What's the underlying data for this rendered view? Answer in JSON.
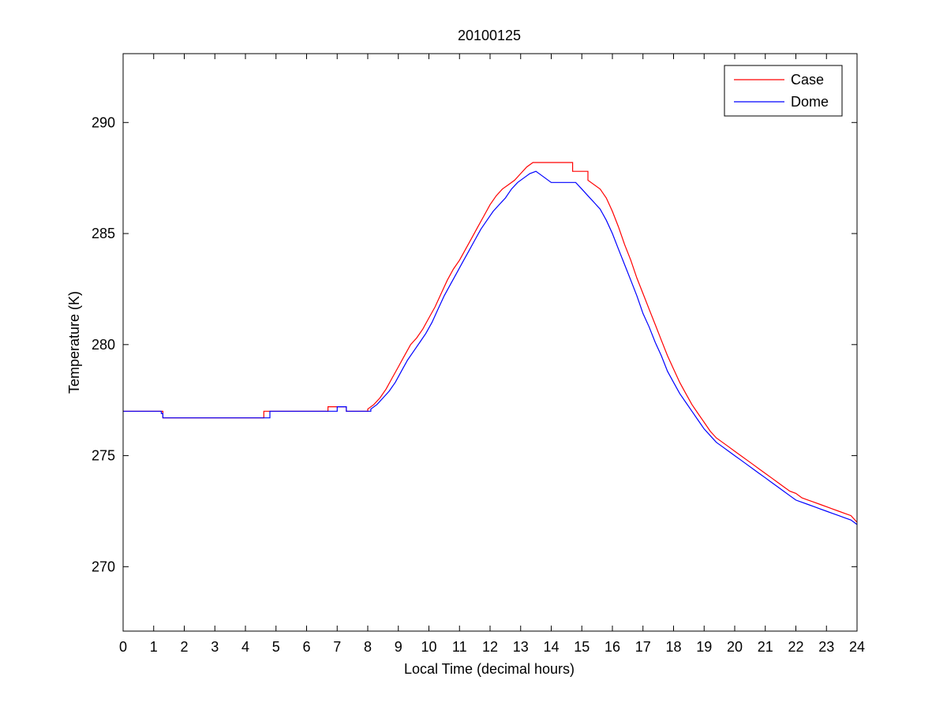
{
  "chart_data": {
    "type": "line",
    "title": "20100125",
    "xlabel": "Local Time (decimal hours)",
    "ylabel": "Temperature (K)",
    "xlim": [
      0,
      24
    ],
    "ylim": [
      267.1,
      293.1
    ],
    "xticks": [
      0,
      1,
      2,
      3,
      4,
      5,
      6,
      7,
      8,
      9,
      10,
      11,
      12,
      13,
      14,
      15,
      16,
      17,
      18,
      19,
      20,
      21,
      22,
      23,
      24
    ],
    "yticks": [
      270,
      275,
      280,
      285,
      290
    ],
    "grid": false,
    "legend_position": "top-right",
    "series": [
      {
        "name": "Case",
        "color": "#ff0000",
        "x": [
          0,
          1.3,
          1.3,
          2.0,
          2.0,
          4.6,
          4.6,
          4.9,
          4.9,
          6.7,
          6.7,
          7.3,
          7.3,
          8.0,
          8.0,
          8.2,
          8.4,
          8.6,
          8.8,
          9.0,
          9.2,
          9.4,
          9.6,
          9.8,
          10.0,
          10.2,
          10.4,
          10.6,
          10.8,
          11.0,
          11.2,
          11.4,
          11.6,
          11.8,
          12.0,
          12.2,
          12.4,
          12.6,
          12.8,
          13.0,
          13.2,
          13.4,
          13.6,
          14.0,
          14.4,
          14.7,
          14.7,
          15.2,
          15.2,
          15.6,
          15.8,
          16.0,
          16.2,
          16.4,
          16.6,
          16.8,
          17.0,
          17.2,
          17.4,
          17.6,
          17.8,
          18.0,
          18.2,
          18.4,
          18.6,
          18.8,
          19.0,
          19.2,
          19.4,
          19.6,
          19.8,
          20.0,
          20.2,
          20.4,
          20.6,
          20.8,
          21.0,
          21.2,
          21.4,
          21.6,
          21.8,
          22.0,
          22.2,
          22.4,
          22.6,
          22.8,
          23.0,
          23.2,
          23.4,
          23.6,
          23.8,
          24.0
        ],
        "y": [
          277.0,
          277.0,
          276.7,
          276.7,
          276.7,
          276.7,
          277.0,
          277.0,
          277.0,
          277.0,
          277.2,
          277.2,
          277.0,
          277.0,
          277.1,
          277.3,
          277.6,
          278.0,
          278.5,
          279.0,
          279.5,
          280.0,
          280.3,
          280.7,
          281.2,
          281.7,
          282.3,
          282.9,
          283.4,
          283.8,
          284.3,
          284.8,
          285.3,
          285.8,
          286.3,
          286.7,
          287.0,
          287.2,
          287.4,
          287.7,
          288.0,
          288.2,
          288.2,
          288.2,
          288.2,
          288.2,
          287.8,
          287.8,
          287.4,
          287.0,
          286.6,
          286.0,
          285.3,
          284.5,
          283.8,
          283.0,
          282.3,
          281.6,
          280.9,
          280.2,
          279.5,
          278.9,
          278.3,
          277.8,
          277.3,
          276.9,
          276.5,
          276.1,
          275.8,
          275.6,
          275.4,
          275.2,
          275.0,
          274.8,
          274.6,
          274.4,
          274.2,
          274.0,
          273.8,
          273.6,
          273.4,
          273.3,
          273.1,
          273.0,
          272.9,
          272.8,
          272.7,
          272.6,
          272.5,
          272.4,
          272.3,
          272.0
        ]
      },
      {
        "name": "Dome",
        "color": "#0000ff",
        "x": [
          0,
          1.25,
          1.25,
          1.3,
          1.3,
          4.8,
          4.8,
          6.8,
          6.8,
          7.0,
          7.0,
          7.3,
          7.3,
          8.1,
          8.1,
          8.3,
          8.5,
          8.7,
          8.9,
          9.1,
          9.3,
          9.5,
          9.7,
          9.9,
          10.1,
          10.3,
          10.5,
          10.7,
          10.9,
          11.1,
          11.3,
          11.5,
          11.7,
          11.9,
          12.1,
          12.3,
          12.5,
          12.7,
          12.9,
          13.1,
          13.3,
          13.5,
          13.7,
          14.0,
          14.4,
          14.8,
          15.0,
          15.2,
          15.4,
          15.6,
          15.8,
          16.0,
          16.2,
          16.4,
          16.6,
          16.8,
          17.0,
          17.2,
          17.4,
          17.6,
          17.8,
          18.0,
          18.2,
          18.4,
          18.6,
          18.8,
          19.0,
          19.2,
          19.4,
          19.6,
          19.8,
          20.0,
          20.2,
          20.4,
          20.6,
          20.8,
          21.0,
          21.2,
          21.4,
          21.6,
          21.8,
          22.0,
          22.2,
          22.4,
          22.6,
          22.8,
          23.0,
          23.2,
          23.4,
          23.6,
          23.8,
          24.0
        ],
        "y": [
          277.0,
          277.0,
          276.9,
          276.9,
          276.7,
          276.7,
          277.0,
          277.0,
          277.0,
          277.0,
          277.2,
          277.2,
          277.0,
          277.0,
          277.1,
          277.3,
          277.6,
          277.9,
          278.3,
          278.8,
          279.3,
          279.7,
          280.1,
          280.5,
          281.0,
          281.6,
          282.2,
          282.7,
          283.2,
          283.7,
          284.2,
          284.7,
          285.2,
          285.6,
          286.0,
          286.3,
          286.6,
          287.0,
          287.3,
          287.5,
          287.7,
          287.8,
          287.6,
          287.3,
          287.3,
          287.3,
          287.0,
          286.7,
          286.4,
          286.1,
          285.6,
          285.0,
          284.3,
          283.6,
          282.9,
          282.2,
          281.4,
          280.8,
          280.1,
          279.5,
          278.8,
          278.3,
          277.8,
          277.4,
          277.0,
          276.6,
          276.2,
          275.9,
          275.6,
          275.4,
          275.2,
          275.0,
          274.8,
          274.6,
          274.4,
          274.2,
          274.0,
          273.8,
          273.6,
          273.4,
          273.2,
          273.0,
          272.9,
          272.8,
          272.7,
          272.6,
          272.5,
          272.4,
          272.3,
          272.2,
          272.1,
          271.9
        ]
      }
    ]
  }
}
